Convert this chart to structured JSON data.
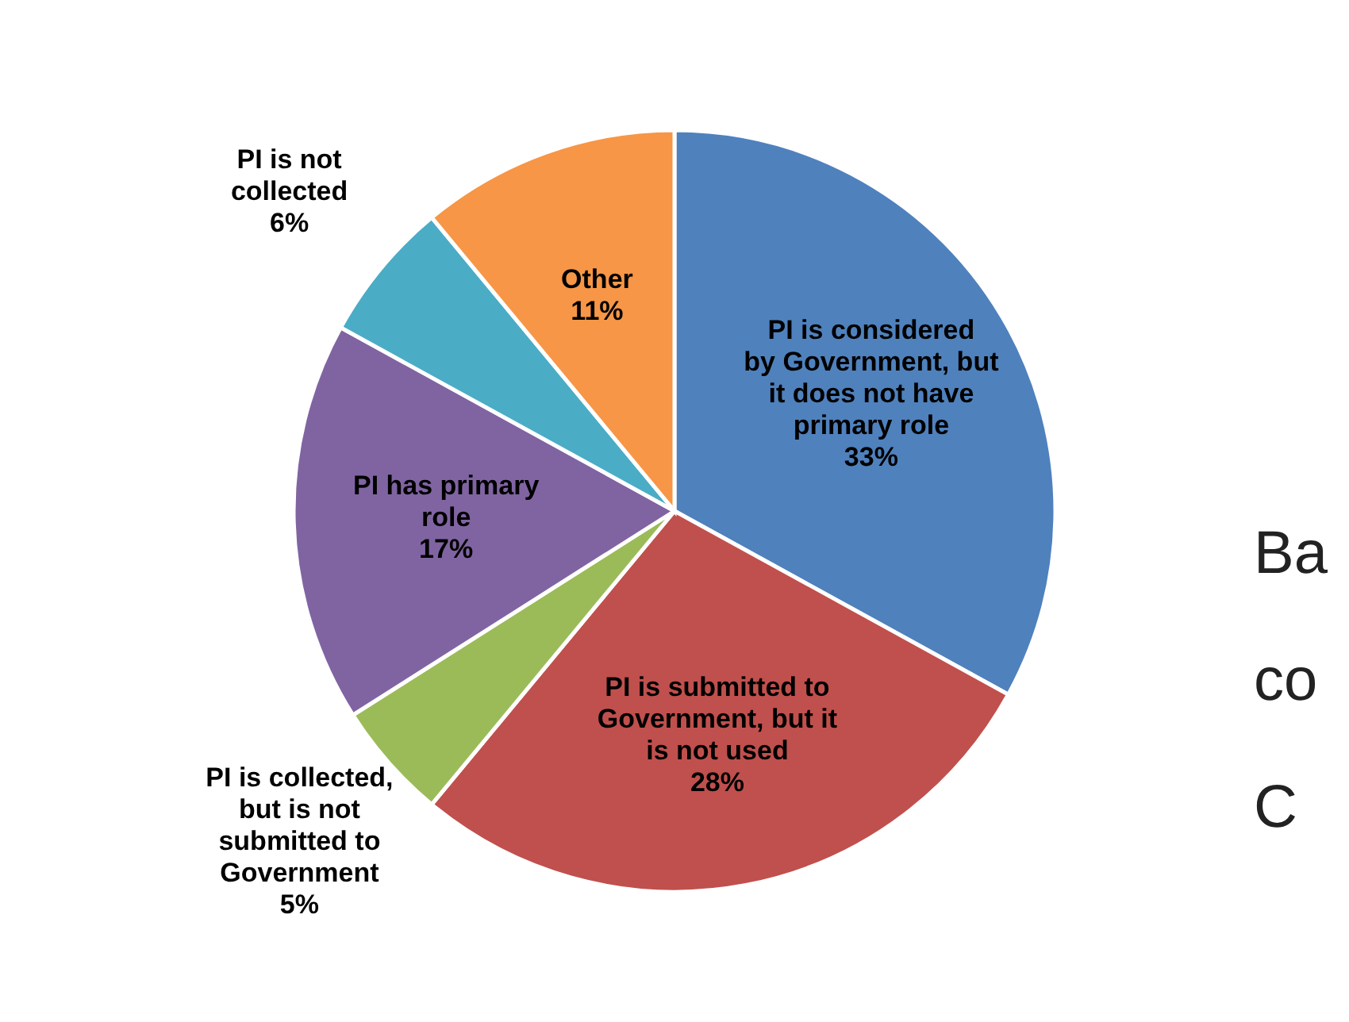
{
  "chart_data": {
    "type": "pie",
    "categories": [
      "PI is considered by Government, but it does not have primary role",
      "PI is submitted to Government, but it is not used",
      "PI is collected, but is not submitted to Government",
      "PI has primary role",
      "PI is not collected",
      "Other"
    ],
    "values": [
      33,
      28,
      5,
      17,
      6,
      11
    ],
    "colors": [
      "#4f81bd",
      "#c0504d",
      "#9bbb59",
      "#8064a2",
      "#4bacc6",
      "#f79646"
    ],
    "value_labels": [
      "33%",
      "28%",
      "5%",
      "17%",
      "6%",
      "11%"
    ],
    "annotations": [
      "Ba",
      "co",
      "C"
    ]
  }
}
